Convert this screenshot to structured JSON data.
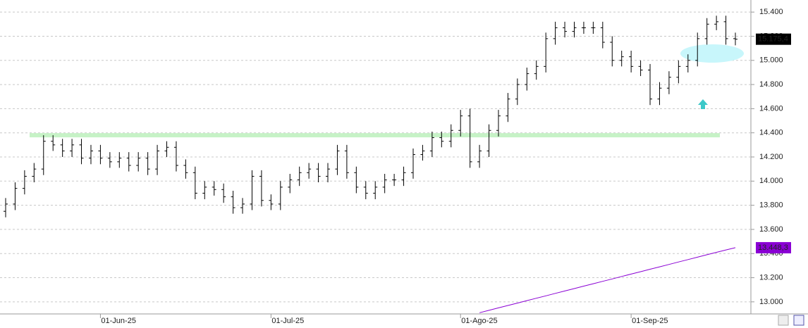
{
  "chart_data": {
    "type": "ohlc",
    "categories": [
      null,
      null,
      null,
      null,
      null,
      null,
      null,
      null,
      null,
      null,
      "01-Jun-25",
      null,
      null,
      null,
      null,
      null,
      null,
      null,
      null,
      null,
      null,
      null,
      null,
      null,
      null,
      null,
      null,
      null,
      "01-Jul-25",
      null,
      null,
      null,
      null,
      null,
      null,
      null,
      null,
      null,
      null,
      null,
      null,
      null,
      null,
      null,
      null,
      null,
      null,
      null,
      "01-Ago-25",
      null,
      null,
      null,
      null,
      null,
      null,
      null,
      null,
      null,
      null,
      null,
      null,
      null,
      null,
      null,
      null,
      null,
      "01-Sep-25",
      null,
      null,
      null,
      null,
      null,
      null,
      null,
      null,
      null,
      null,
      null
    ],
    "open": [
      13750,
      13810,
      13940,
      14040,
      14100,
      14330,
      14300,
      14250,
      14300,
      14190,
      14250,
      14190,
      14160,
      14190,
      14130,
      14190,
      14100,
      14250,
      14280,
      14130,
      14070,
      13900,
      13950,
      13930,
      13870,
      13780,
      13810,
      14040,
      13840,
      13810,
      13950,
      14010,
      14070,
      14100,
      14040,
      14100,
      14250,
      14070,
      13950,
      13900,
      13950,
      14010,
      14010,
      14070,
      14220,
      14250,
      14360,
      14330,
      14420,
      14540,
      14160,
      14250,
      14420,
      14540,
      14680,
      14800,
      14890,
      14950,
      15180,
      15270,
      15240,
      15270,
      15270,
      15270,
      15150,
      15000,
      15030,
      14950,
      14920,
      14680,
      14770,
      14860,
      14950,
      15000,
      15180,
      15300,
      15320,
      15180
    ],
    "high": [
      13860,
      13990,
      14090,
      14150,
      14380,
      14380,
      14350,
      14350,
      14350,
      14300,
      14300,
      14240,
      14240,
      14240,
      14240,
      14240,
      14300,
      14330,
      14330,
      14180,
      14120,
      14000,
      14000,
      13980,
      13920,
      13860,
      14090,
      14090,
      13890,
      14000,
      14060,
      14120,
      14150,
      14150,
      14150,
      14300,
      14300,
      14120,
      14000,
      14000,
      14060,
      14060,
      14120,
      14270,
      14300,
      14410,
      14410,
      14470,
      14590,
      14600,
      14300,
      14470,
      14590,
      14730,
      14850,
      14940,
      15000,
      15230,
      15320,
      15320,
      15320,
      15320,
      15320,
      15320,
      15200,
      15080,
      15080,
      15000,
      14970,
      14820,
      14910,
      15000,
      15050,
      15230,
      15350,
      15370,
      15370,
      15230
    ],
    "low": [
      13700,
      13760,
      13890,
      13990,
      14050,
      14250,
      14200,
      14200,
      14140,
      14140,
      14140,
      14110,
      14110,
      14080,
      14080,
      14050,
      14050,
      14200,
      14080,
      14020,
      13850,
      13850,
      13880,
      13820,
      13730,
      13730,
      13760,
      13790,
      13760,
      13760,
      13900,
      13960,
      14020,
      13990,
      13990,
      14050,
      14020,
      13900,
      13850,
      13850,
      13900,
      13960,
      13960,
      14020,
      14170,
      14200,
      14280,
      14280,
      14370,
      14110,
      14110,
      14200,
      14370,
      14490,
      14630,
      14750,
      14840,
      14900,
      15130,
      15190,
      15190,
      15220,
      15220,
      15100,
      14950,
      14950,
      14900,
      14870,
      14630,
      14630,
      14720,
      14810,
      14900,
      14950,
      15130,
      15250,
      15130,
      15125
    ],
    "close": [
      13810,
      13940,
      14040,
      14100,
      14330,
      14300,
      14250,
      14300,
      14190,
      14250,
      14190,
      14160,
      14190,
      14130,
      14190,
      14100,
      14250,
      14280,
      14130,
      14070,
      13900,
      13950,
      13930,
      13870,
      13780,
      13810,
      14040,
      13840,
      13810,
      13950,
      14010,
      14070,
      14100,
      14040,
      14100,
      14250,
      14070,
      13950,
      13900,
      13950,
      14010,
      14010,
      14070,
      14220,
      14250,
      14360,
      14330,
      14420,
      14540,
      14160,
      14250,
      14420,
      14540,
      14680,
      14800,
      14890,
      14950,
      15180,
      15270,
      15240,
      15270,
      15270,
      15270,
      15150,
      15000,
      15030,
      14950,
      14920,
      14680,
      14770,
      14860,
      14950,
      15000,
      15180,
      15300,
      15320,
      15180,
      15175.4
    ],
    "color": "#000000",
    "moving_average": {
      "color": "#8a00d4",
      "values": [
        null,
        null,
        null,
        null,
        null,
        null,
        null,
        null,
        null,
        null,
        null,
        null,
        null,
        null,
        null,
        null,
        null,
        null,
        null,
        null,
        null,
        null,
        null,
        null,
        null,
        null,
        null,
        null,
        null,
        null,
        null,
        null,
        null,
        null,
        null,
        null,
        null,
        null,
        null,
        null,
        null,
        null,
        null,
        null,
        null,
        null,
        null,
        null,
        null,
        null,
        12910,
        12930,
        12950,
        12970,
        12990,
        13010,
        13030,
        13050,
        13070,
        13090,
        13110,
        13130,
        13150,
        13170,
        13190,
        13210,
        13230,
        13250,
        13270,
        13290,
        13310,
        13330,
        13350,
        13370,
        13390,
        13410,
        13430,
        13448.3
      ]
    },
    "reference_line": {
      "value": 14380,
      "color": "#c6f2c6"
    },
    "last_labels": [
      {
        "value": 15175.4,
        "label": "15.175,4",
        "color": "#000000"
      },
      {
        "value": 13448.3,
        "label": "13.448,3",
        "color": "#8a00d4"
      }
    ],
    "ylim": [
      12900,
      15500
    ],
    "yticks": [
      {
        "value": 13000,
        "label": "13.000"
      },
      {
        "value": 13200,
        "label": "13.200"
      },
      {
        "value": 13400,
        "label": "13.400"
      },
      {
        "value": 13600,
        "label": "13.600"
      },
      {
        "value": 13800,
        "label": "13.800"
      },
      {
        "value": 14000,
        "label": "14.000"
      },
      {
        "value": 14200,
        "label": "14.200"
      },
      {
        "value": 14400,
        "label": "14.400"
      },
      {
        "value": 14600,
        "label": "14.600"
      },
      {
        "value": 14800,
        "label": "14.800"
      },
      {
        "value": 15000,
        "label": "15.000"
      },
      {
        "value": 15200,
        "label": "15.200"
      },
      {
        "value": 15400,
        "label": "15.400"
      }
    ],
    "grid": true
  }
}
